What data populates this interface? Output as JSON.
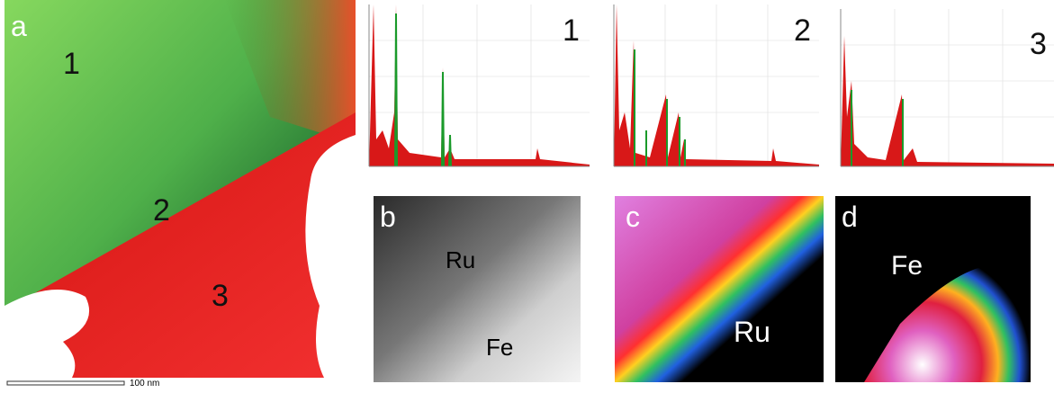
{
  "panel_a": {
    "label": "a",
    "regions": [
      "1",
      "2",
      "3"
    ],
    "scale_bar": "100 nm"
  },
  "spectra": [
    {
      "label": "1"
    },
    {
      "label": "2"
    },
    {
      "label": "3"
    }
  ],
  "panel_b": {
    "label": "b",
    "annotations": [
      "Ru",
      "Fe"
    ]
  },
  "panel_c": {
    "label": "c",
    "annotation": "Ru"
  },
  "panel_d": {
    "label": "d",
    "annotation": "Fe"
  }
}
